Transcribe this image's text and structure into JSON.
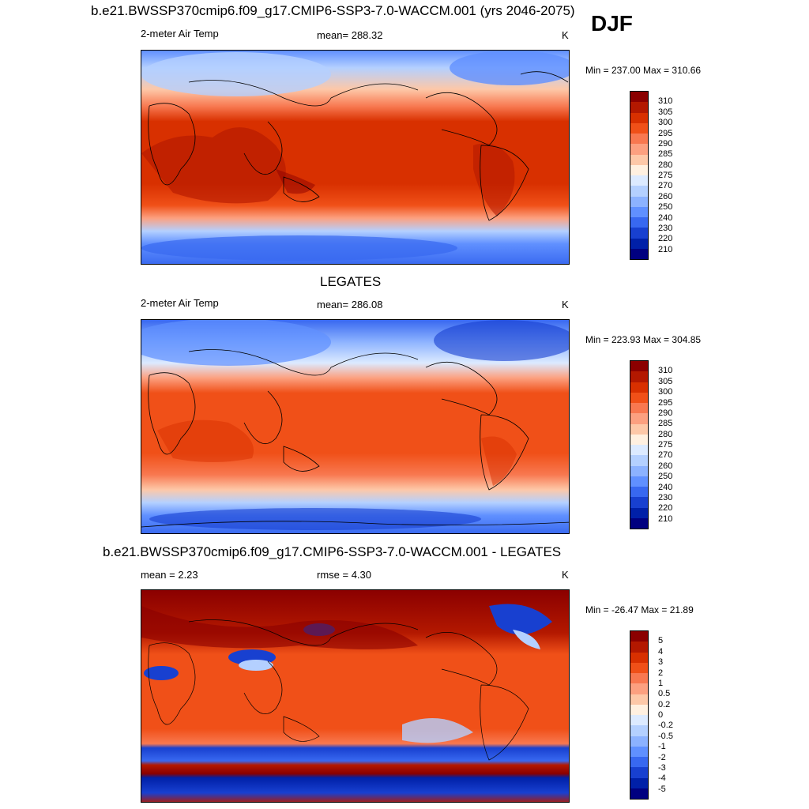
{
  "season": "DJF",
  "panels": [
    {
      "title": "b.e21.BWSSP370cmip6.f09_g17.CMIP6-SSP3-7.0-WACCM.001 (yrs 2046-2075)",
      "left": "2-meter Air Temp",
      "center": "mean= 288.32",
      "units": "K",
      "minmax": "Min = 237.00 Max = 310.66"
    },
    {
      "title": "LEGATES",
      "left": "2-meter Air Temp",
      "center": "mean= 286.08",
      "units": "K",
      "minmax": "Min = 223.93 Max = 304.85"
    },
    {
      "title": "b.e21.BWSSP370cmip6.f09_g17.CMIP6-SSP3-7.0-WACCM.001 - LEGATES",
      "left": "mean =   2.23",
      "center": "rmse =   4.30",
      "units": "K",
      "minmax": "Min = -26.47 Max =  21.89"
    }
  ],
  "temp_colorbar": {
    "labels": [
      "310",
      "305",
      "300",
      "295",
      "290",
      "285",
      "280",
      "275",
      "270",
      "260",
      "250",
      "240",
      "230",
      "220",
      "210"
    ],
    "colors": [
      "#8b0000",
      "#b31800",
      "#d83000",
      "#f05018",
      "#f87850",
      "#fca080",
      "#fdc8a8",
      "#fff0e0",
      "#dceaff",
      "#b4d0ff",
      "#8cb2ff",
      "#6090ff",
      "#3868f0",
      "#1840d0",
      "#0020a8",
      "#000080"
    ]
  },
  "diff_colorbar": {
    "labels": [
      "5",
      "4",
      "3",
      "2",
      "1",
      "0.5",
      "0.2",
      "0",
      "-0.2",
      "-0.5",
      "-1",
      "-2",
      "-3",
      "-4",
      "-5"
    ],
    "colors": [
      "#8b0000",
      "#b31800",
      "#d83000",
      "#f05018",
      "#f87850",
      "#fca080",
      "#fdc8a8",
      "#fff0e0",
      "#dceaff",
      "#b4d0ff",
      "#8cb2ff",
      "#6090ff",
      "#3868f0",
      "#1840d0",
      "#0020a8",
      "#000080"
    ]
  }
}
